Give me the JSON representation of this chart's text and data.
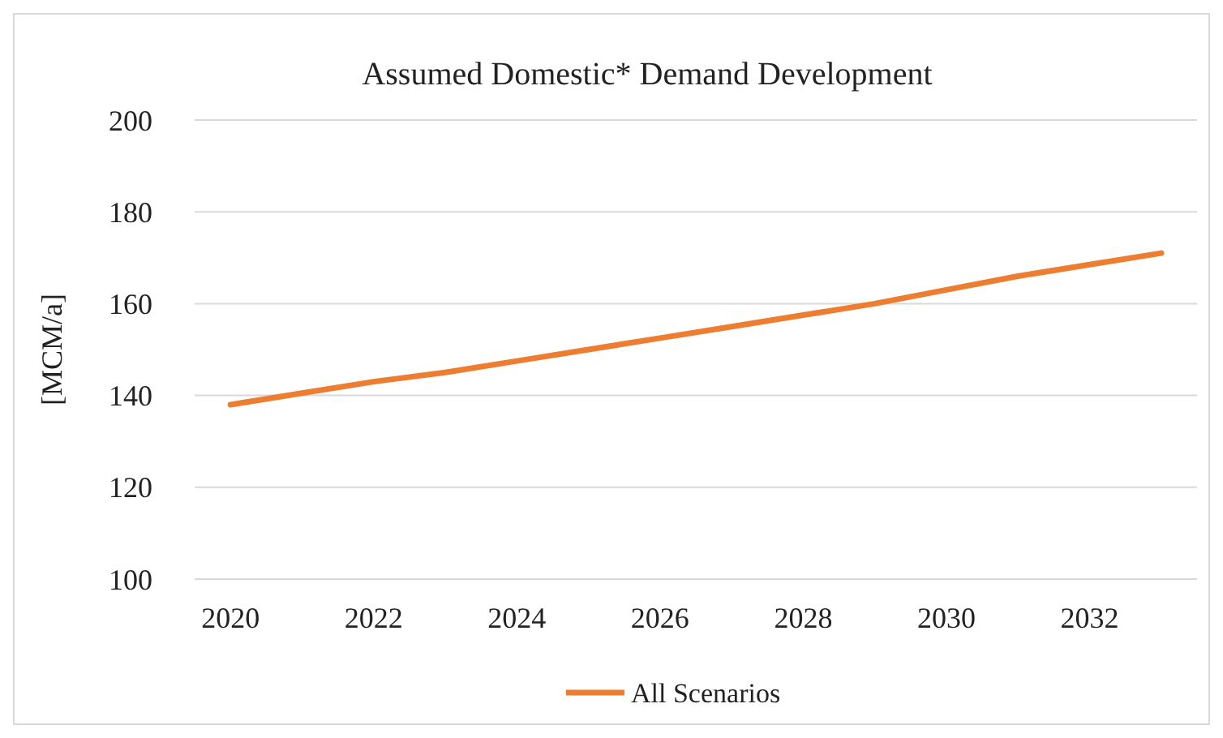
{
  "chart_data": {
    "type": "line",
    "title": "Assumed Domestic* Demand Development",
    "ylabel": "[MCM/a]",
    "categories": [
      "2020",
      null,
      "2022",
      null,
      "2024",
      null,
      "2026",
      null,
      "2028",
      null,
      "2030",
      null,
      "2032",
      null
    ],
    "series": [
      {
        "name": "All Scenarios",
        "color": "#ed7d31",
        "values": [
          138,
          140.5,
          143,
          145,
          147.5,
          150,
          152.5,
          155,
          157.5,
          160,
          163,
          166,
          168.5,
          171
        ]
      }
    ],
    "ylim": [
      100,
      200
    ],
    "yticks": [
      100,
      120,
      140,
      160,
      180,
      200
    ],
    "grid": "y",
    "legend": "bottom",
    "marker": "none",
    "line_style": "solid"
  }
}
